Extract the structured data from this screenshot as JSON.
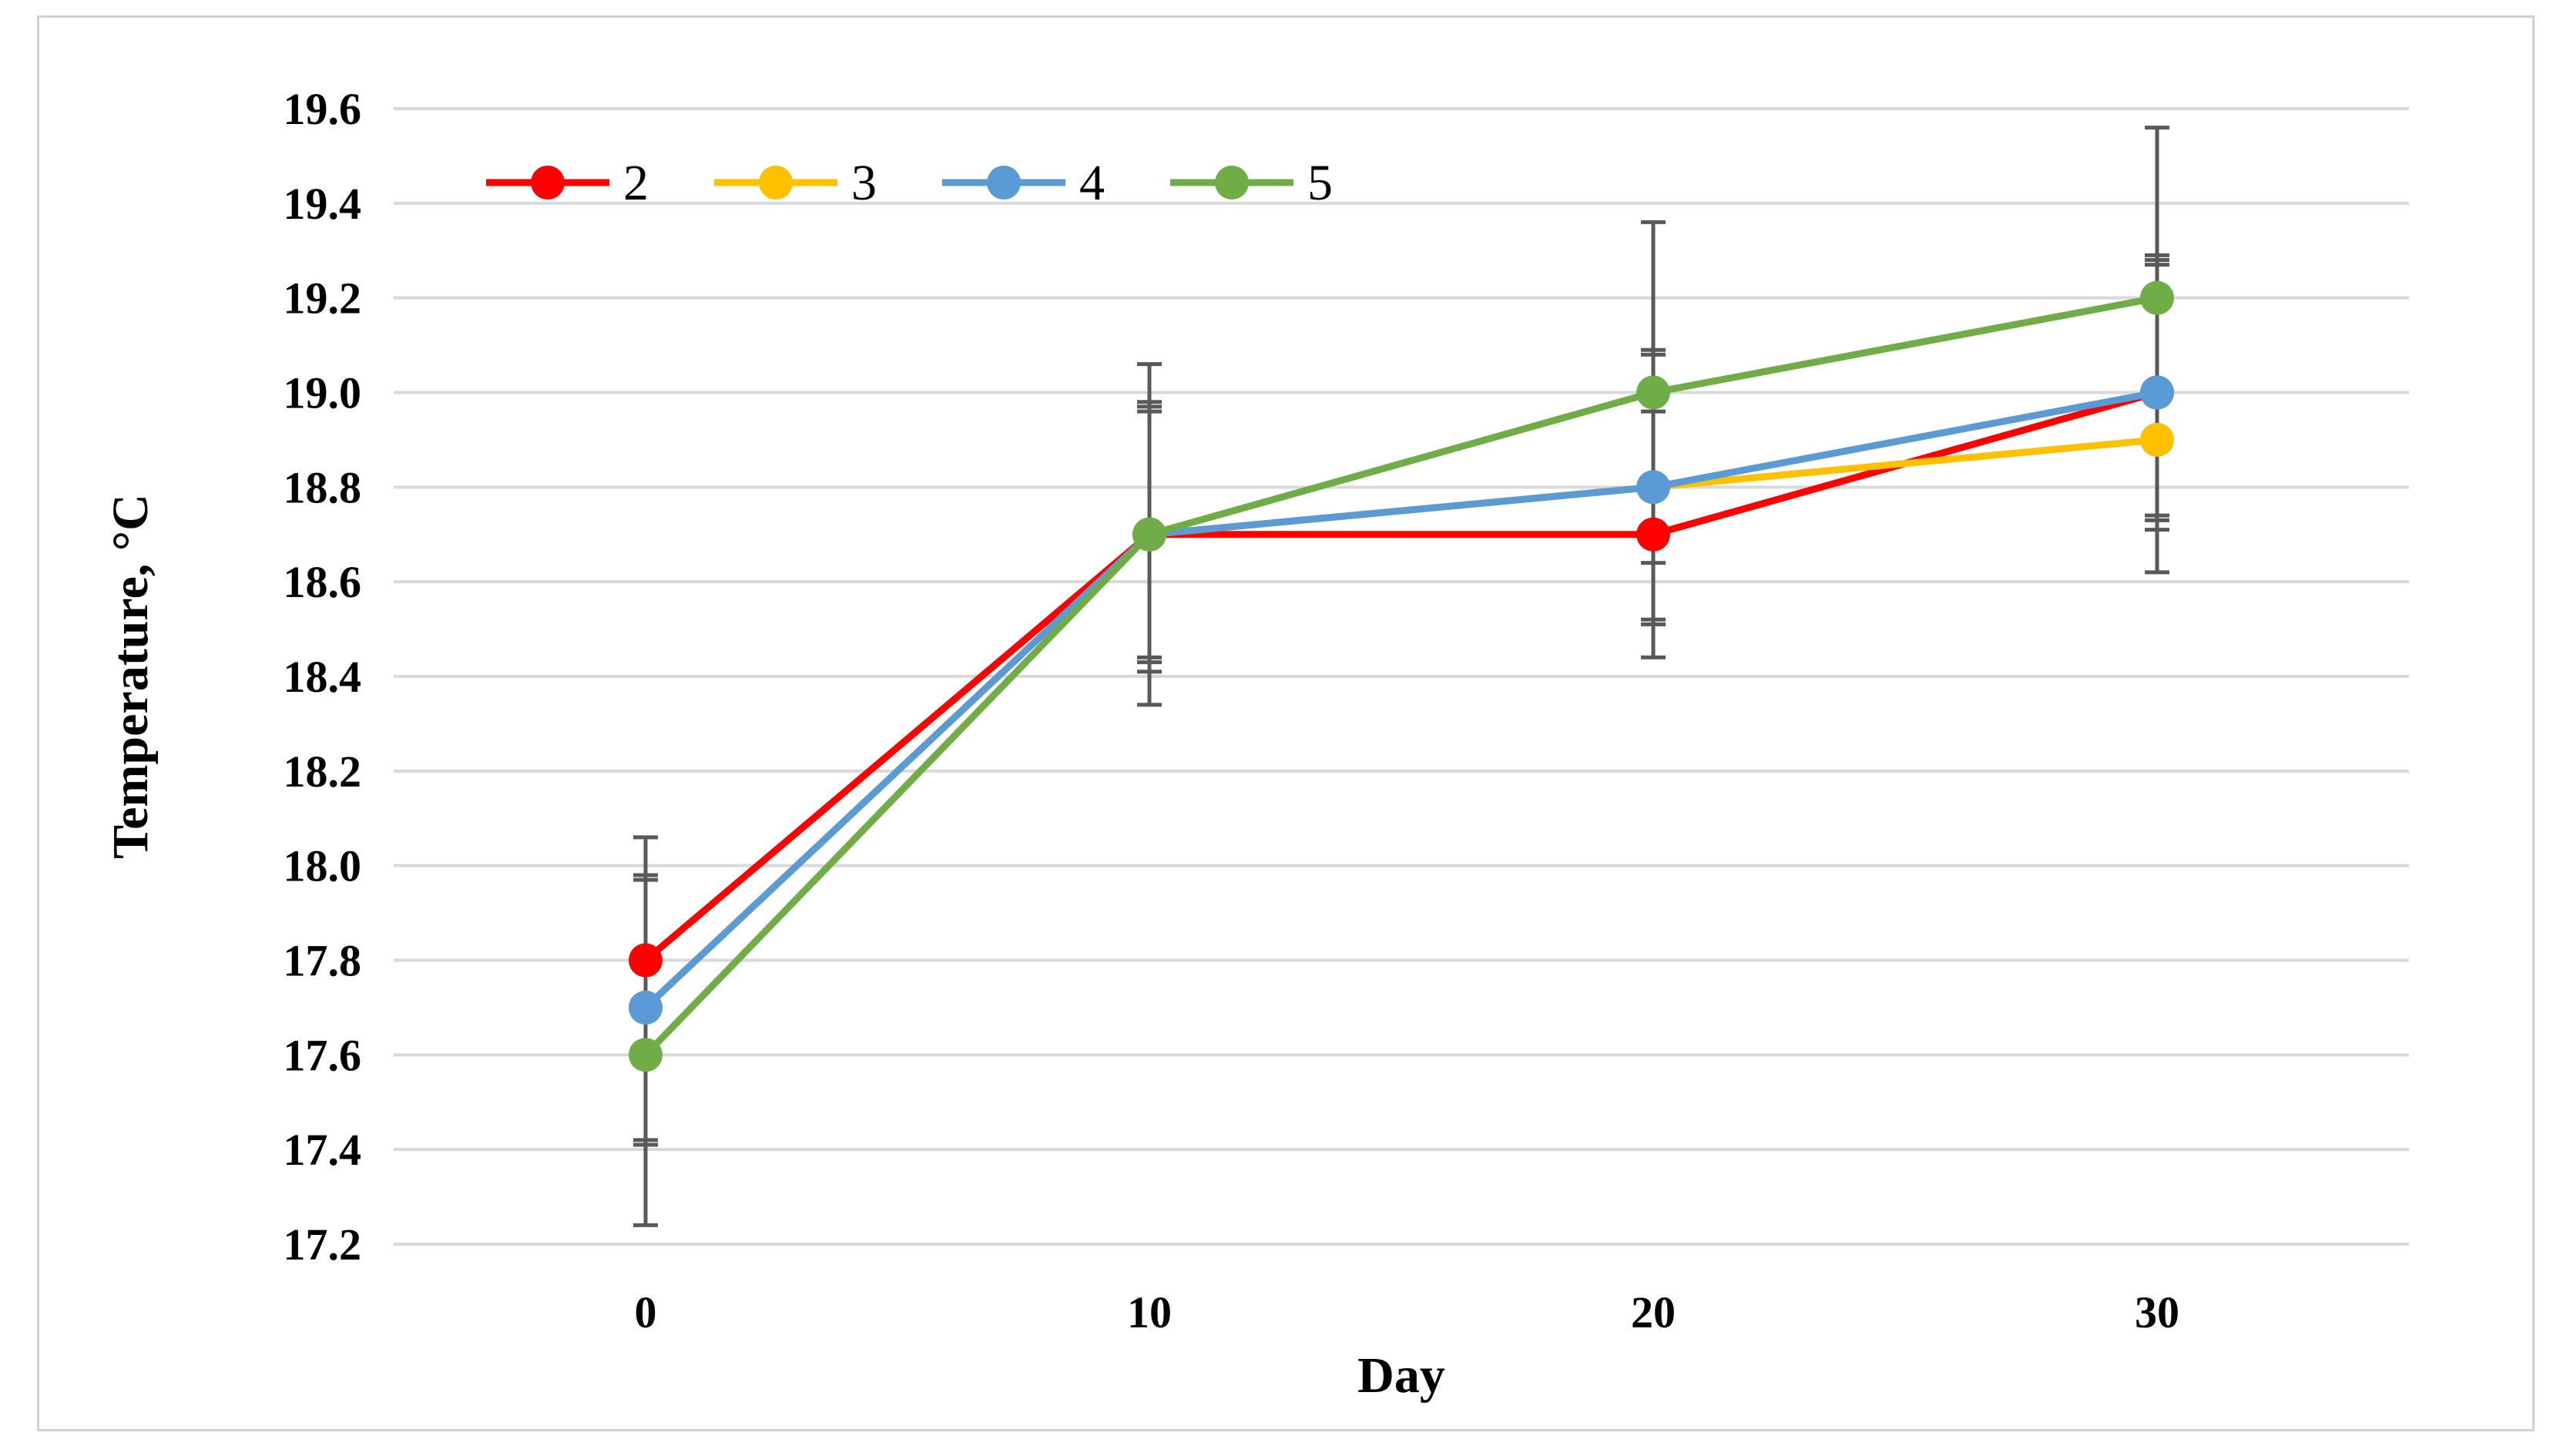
{
  "chart_data": {
    "type": "line",
    "title": "",
    "xlabel": "Day",
    "ylabel": "Temperature, °C",
    "x": [
      0,
      10,
      20,
      30
    ],
    "x_tick_labels": [
      "0",
      "10",
      "20",
      "30"
    ],
    "ylim": [
      17.2,
      19.6
    ],
    "y_ticks": [
      17.2,
      17.4,
      17.6,
      17.8,
      18.0,
      18.2,
      18.4,
      18.6,
      18.8,
      19.0,
      19.2,
      19.4,
      19.6
    ],
    "y_tick_labels": [
      "17.2",
      "17.4",
      "17.6",
      "17.8",
      "18.0",
      "18.2",
      "18.4",
      "18.6",
      "18.8",
      "19.0",
      "19.2",
      "19.4",
      "19.6"
    ],
    "grid": true,
    "legend_position": "top-left",
    "series": [
      {
        "name": "2",
        "color": "#ff0000",
        "values": [
          17.8,
          18.7,
          18.7,
          19.0
        ],
        "error_low": [
          17.62,
          18.41,
          18.51,
          18.74
        ],
        "error_high": [
          17.98,
          18.98,
          18.96,
          19.28
        ]
      },
      {
        "name": "3",
        "color": "#ffc000",
        "values": [
          17.7,
          18.7,
          18.8,
          18.9
        ],
        "error_low": [
          17.41,
          18.43,
          18.52,
          18.71
        ],
        "error_high": [
          17.97,
          18.97,
          19.08,
          19.27
        ]
      },
      {
        "name": "4",
        "color": "#5b9bd5",
        "values": [
          17.7,
          18.7,
          18.8,
          19.0
        ],
        "error_low": [
          17.42,
          18.44,
          18.64,
          18.73
        ],
        "error_high": [
          17.98,
          18.96,
          19.09,
          19.29
        ]
      },
      {
        "name": "5",
        "color": "#70ad47",
        "values": [
          17.6,
          18.7,
          19.0,
          19.2
        ],
        "error_low": [
          17.24,
          18.34,
          18.44,
          18.62
        ],
        "error_high": [
          18.06,
          19.06,
          19.36,
          19.56
        ]
      }
    ],
    "error_bar_color": "#595959",
    "grid_color": "#d9d9d9"
  }
}
